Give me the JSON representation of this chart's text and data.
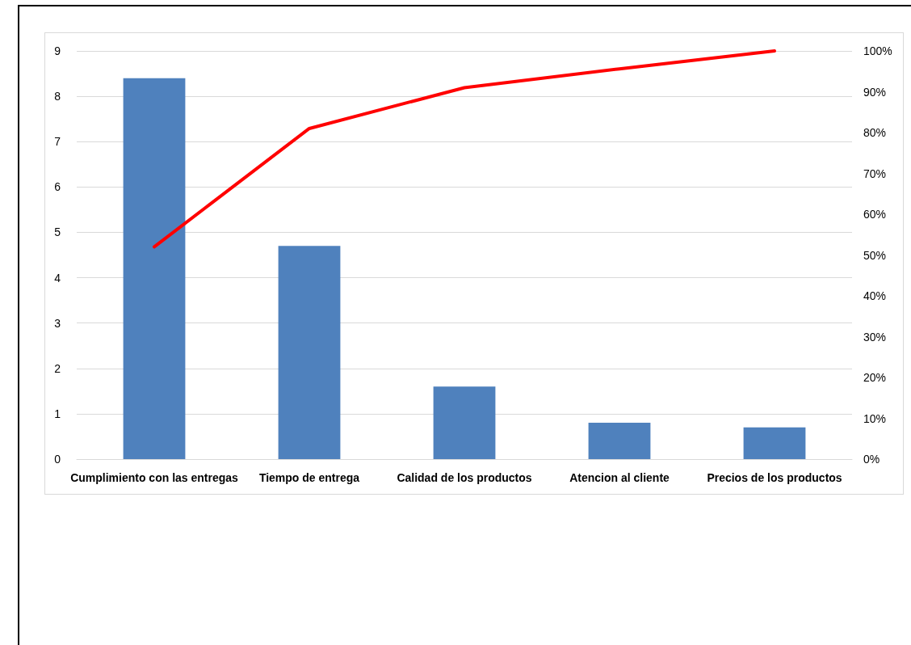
{
  "chart_data": {
    "type": "bar",
    "categories": [
      "Cumplimiento con las entregas",
      "Tiempo de entrega",
      "Calidad de los productos",
      "Atencion al cliente",
      "Precios de los productos"
    ],
    "series": [
      {
        "color": "#4f81bd",
        "values": [
          8.4,
          4.7,
          1.6,
          0.8,
          0.7
        ]
      },
      {
        "type": "line",
        "color": "#ff0000",
        "axis": "y2",
        "values": [
          52,
          81,
          91,
          95.6,
          100
        ]
      }
    ],
    "ylim": [
      0,
      9
    ],
    "yticks": [
      0,
      1,
      2,
      3,
      4,
      5,
      6,
      7,
      8,
      9
    ],
    "y2lim": [
      0,
      100
    ],
    "y2ticks": [
      {
        "value": 0,
        "label": "0%"
      },
      {
        "value": 10,
        "label": "10%"
      },
      {
        "value": 20,
        "label": "20%"
      },
      {
        "value": 30,
        "label": "30%"
      },
      {
        "value": 40,
        "label": "40%"
      },
      {
        "value": 50,
        "label": "50%"
      },
      {
        "value": 60,
        "label": "60%"
      },
      {
        "value": 70,
        "label": "70%"
      },
      {
        "value": 80,
        "label": "80%"
      },
      {
        "value": 90,
        "label": "90%"
      },
      {
        "value": 100,
        "label": "100%"
      }
    ],
    "grid": "y",
    "marker": "none",
    "line_style": "solid"
  }
}
